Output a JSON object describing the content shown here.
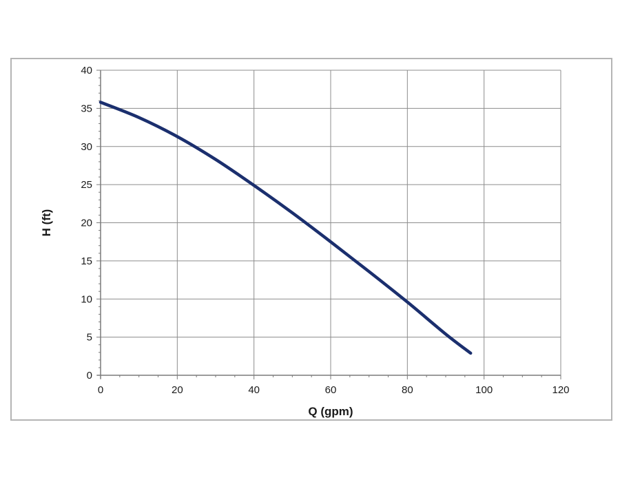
{
  "chart_data": {
    "type": "line",
    "title": "",
    "xlabel": "Q (gpm)",
    "ylabel": "H (ft)",
    "xlim": [
      0,
      120
    ],
    "ylim": [
      0,
      40
    ],
    "x_ticks": [
      0,
      20,
      40,
      60,
      80,
      100,
      120
    ],
    "y_ticks": [
      0,
      5,
      10,
      15,
      20,
      25,
      30,
      35,
      40
    ],
    "x_tick_labels": [
      "0",
      "20",
      "40",
      "60",
      "80",
      "100",
      "120"
    ],
    "y_tick_labels": [
      "0",
      "5",
      "10",
      "15",
      "20",
      "25",
      "30",
      "35",
      "40"
    ],
    "grid": true,
    "legend": "none",
    "series": [
      {
        "color": "#1b2f6e",
        "x": [
          0,
          10,
          20,
          30,
          40,
          50,
          60,
          70,
          80,
          90,
          96.5
        ],
        "y": [
          35.8,
          33.8,
          31.3,
          28.3,
          24.9,
          21.3,
          17.5,
          13.6,
          9.6,
          5.4,
          2.9
        ]
      }
    ],
    "colors": {
      "line": "#1b2f6e",
      "grid": "#8c8c8c",
      "axis": "#7a7a7a",
      "frame": "#b4b4b4"
    }
  }
}
